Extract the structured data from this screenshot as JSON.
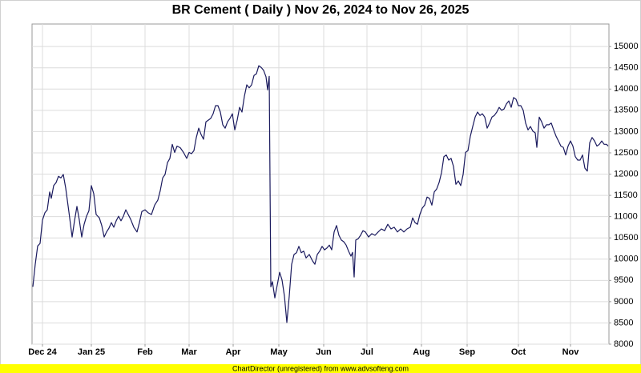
{
  "chart_data": {
    "type": "line",
    "title": "BR Cement ( Daily ) Nov 26, 2024 to Nov 26, 2025",
    "x": [
      1,
      4,
      7,
      10,
      13,
      16,
      19,
      22,
      24,
      27,
      30,
      33,
      36,
      39,
      42,
      46,
      50,
      53,
      56,
      59,
      62,
      65,
      68,
      71,
      74,
      77,
      80,
      84,
      87,
      90,
      93,
      96,
      99,
      102,
      105,
      108,
      111,
      114,
      117,
      120,
      123,
      127,
      131,
      134,
      137,
      141,
      145,
      149,
      153,
      157,
      160,
      163,
      166,
      169,
      172,
      175,
      178,
      181,
      185,
      189,
      193,
      196,
      199,
      202,
      205,
      208,
      211,
      214,
      217,
      220,
      223,
      226,
      229,
      232,
      235,
      238,
      241,
      244,
      247,
      250,
      253,
      256,
      259,
      262,
      265,
      268,
      271,
      274,
      277,
      280,
      283,
      286,
      289,
      292,
      294,
      296,
      298,
      300,
      303,
      306,
      309,
      312,
      315,
      318,
      321,
      324,
      327,
      330,
      333,
      336,
      339,
      342,
      346,
      350,
      353,
      356,
      359,
      362,
      365,
      368,
      371,
      374,
      377,
      380,
      383,
      386,
      389,
      392,
      395,
      398,
      400,
      402,
      404,
      407,
      410,
      413,
      416,
      420,
      424,
      428,
      432,
      436,
      440,
      444,
      448,
      452,
      456,
      460,
      464,
      468,
      472,
      475,
      478,
      481,
      484,
      487,
      490,
      493,
      496,
      499,
      502,
      505,
      508,
      511,
      514,
      517,
      520,
      523,
      526,
      529,
      532,
      535,
      538,
      541,
      544,
      547,
      550,
      553,
      556,
      559,
      562,
      565,
      568,
      571,
      574,
      577,
      580,
      583,
      586,
      589,
      592,
      595,
      598,
      601,
      604,
      607,
      610,
      613,
      616,
      619,
      622,
      625,
      628,
      630,
      633,
      636,
      639,
      642,
      645,
      648,
      651,
      654,
      657,
      660,
      663,
      666,
      669,
      672,
      675,
      678,
      681,
      684,
      687,
      690,
      693,
      696,
      699,
      702,
      705,
      708,
      711,
      714,
      717,
      719
    ],
    "series": [
      {
        "color": "#1a1a5e",
        "values": [
          9350,
          9880,
          10310,
          10370,
          10920,
          11090,
          11160,
          11580,
          11430,
          11730,
          11800,
          11950,
          11910,
          11990,
          11670,
          11110,
          10520,
          10900,
          11240,
          10920,
          10520,
          10820,
          11010,
          11140,
          11730,
          11540,
          11050,
          10970,
          10790,
          10520,
          10640,
          10730,
          10860,
          10750,
          10900,
          11010,
          10900,
          11010,
          11160,
          11050,
          10940,
          10750,
          10640,
          10860,
          11120,
          11160,
          11090,
          11050,
          11270,
          11390,
          11610,
          11910,
          11990,
          12270,
          12370,
          12700,
          12510,
          12660,
          12620,
          12510,
          12370,
          12510,
          12480,
          12550,
          12860,
          13080,
          12930,
          12820,
          13230,
          13270,
          13310,
          13420,
          13610,
          13610,
          13460,
          13160,
          13080,
          13230,
          13310,
          13420,
          13040,
          13270,
          13570,
          13460,
          13830,
          14100,
          14030,
          14100,
          14320,
          14360,
          14550,
          14510,
          14440,
          14290,
          13980,
          14300,
          9350,
          9470,
          9090,
          9390,
          9690,
          9510,
          9130,
          8510,
          9130,
          9880,
          10110,
          10150,
          10300,
          10150,
          10190,
          10030,
          10110,
          9960,
          9880,
          10110,
          10190,
          10300,
          10220,
          10260,
          10330,
          10220,
          10640,
          10790,
          10560,
          10450,
          10410,
          10330,
          10190,
          10070,
          10160,
          9580,
          10450,
          10480,
          10560,
          10670,
          10640,
          10520,
          10600,
          10560,
          10640,
          10710,
          10670,
          10820,
          10710,
          10750,
          10640,
          10710,
          10640,
          10710,
          10750,
          10970,
          10860,
          10820,
          11050,
          11200,
          11270,
          11460,
          11430,
          11270,
          11580,
          11650,
          11800,
          12030,
          12410,
          12450,
          12330,
          12370,
          12180,
          11760,
          11840,
          11730,
          11990,
          12510,
          12550,
          12890,
          13120,
          13340,
          13460,
          13380,
          13420,
          13340,
          13080,
          13200,
          13340,
          13380,
          13460,
          13570,
          13500,
          13530,
          13650,
          13720,
          13570,
          13800,
          13760,
          13610,
          13610,
          13500,
          13200,
          13040,
          13120,
          13010,
          12970,
          12630,
          13340,
          13230,
          13080,
          13160,
          13160,
          13200,
          13040,
          12890,
          12780,
          12660,
          12630,
          12450,
          12660,
          12780,
          12660,
          12410,
          12330,
          12330,
          12450,
          12140,
          12070,
          12740,
          12860,
          12780,
          12660,
          12700,
          12780,
          12700,
          12700,
          12660
        ]
      }
    ],
    "xlim": [
      0,
      720
    ],
    "xticks": [
      {
        "value": 13,
        "label": "Dec 24"
      },
      {
        "value": 74,
        "label": "Jan 25"
      },
      {
        "value": 141,
        "label": "Feb"
      },
      {
        "value": 196,
        "label": "Mar"
      },
      {
        "value": 251,
        "label": "Apr"
      },
      {
        "value": 308,
        "label": "May"
      },
      {
        "value": 364,
        "label": "Jun"
      },
      {
        "value": 418,
        "label": "Jul"
      },
      {
        "value": 486,
        "label": "Aug"
      },
      {
        "value": 543,
        "label": "Sep"
      },
      {
        "value": 607,
        "label": "Oct"
      },
      {
        "value": 672,
        "label": "Nov"
      }
    ],
    "ylim": [
      8000,
      15530
    ],
    "yticks": [
      8000,
      8500,
      9000,
      9500,
      10000,
      10500,
      11000,
      11500,
      12000,
      12500,
      13000,
      13500,
      14000,
      14500,
      15000
    ],
    "grid": true
  },
  "footer": "ChartDirector (unregistered) from www.advsofteng.com"
}
